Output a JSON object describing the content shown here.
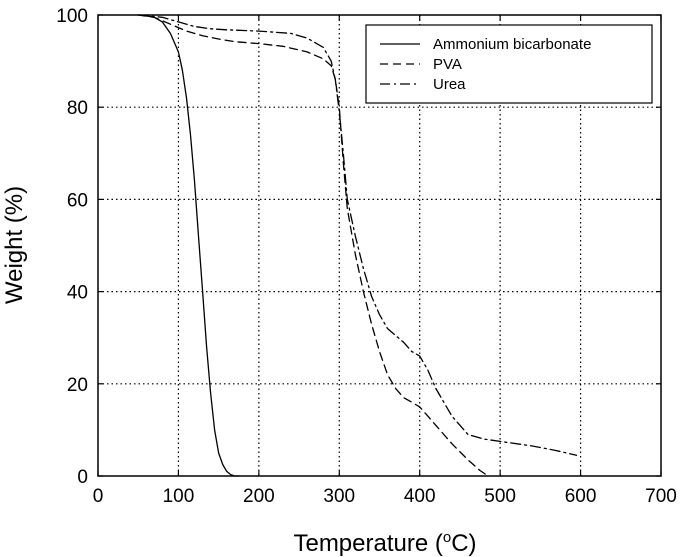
{
  "chart_data": {
    "type": "line",
    "xlabel": "Temperature (",
    "xlabel_sup": "o",
    "xlabel_unit": "C)",
    "ylabel": "Weight (%)",
    "xlim": [
      0,
      700
    ],
    "ylim": [
      0,
      100
    ],
    "x_ticks": [
      0,
      100,
      200,
      300,
      400,
      500,
      600,
      700
    ],
    "y_ticks": [
      0,
      20,
      40,
      60,
      80,
      100
    ],
    "grid": true,
    "legend_position": "top-right",
    "series": [
      {
        "name": "Ammonium bicarbonate",
        "style": "solid",
        "points": [
          [
            50,
            100
          ],
          [
            60,
            99.8
          ],
          [
            70,
            99.5
          ],
          [
            80,
            98.5
          ],
          [
            90,
            96
          ],
          [
            100,
            92
          ],
          [
            105,
            88
          ],
          [
            110,
            82
          ],
          [
            115,
            74
          ],
          [
            120,
            64
          ],
          [
            125,
            52
          ],
          [
            130,
            40
          ],
          [
            135,
            28
          ],
          [
            140,
            18
          ],
          [
            145,
            10
          ],
          [
            150,
            5
          ],
          [
            155,
            2.5
          ],
          [
            160,
            1
          ],
          [
            165,
            0.3
          ],
          [
            170,
            0
          ],
          [
            175,
            0
          ]
        ]
      },
      {
        "name": "PVA",
        "style": "dashed",
        "points": [
          [
            50,
            100
          ],
          [
            70,
            99.5
          ],
          [
            90,
            98
          ],
          [
            110,
            96.5
          ],
          [
            130,
            95.5
          ],
          [
            150,
            94.8
          ],
          [
            170,
            94.2
          ],
          [
            200,
            93.8
          ],
          [
            230,
            93.2
          ],
          [
            260,
            92
          ],
          [
            280,
            90.5
          ],
          [
            290,
            89
          ],
          [
            295,
            86
          ],
          [
            300,
            80
          ],
          [
            305,
            68
          ],
          [
            310,
            58
          ],
          [
            320,
            48
          ],
          [
            330,
            40
          ],
          [
            340,
            33
          ],
          [
            350,
            27
          ],
          [
            360,
            22
          ],
          [
            370,
            19
          ],
          [
            380,
            17
          ],
          [
            390,
            16
          ],
          [
            400,
            15
          ],
          [
            410,
            13
          ],
          [
            420,
            11
          ],
          [
            440,
            7
          ],
          [
            460,
            3.5
          ],
          [
            475,
            1.2
          ],
          [
            485,
            0
          ]
        ]
      },
      {
        "name": "Urea",
        "style": "dash-dot",
        "points": [
          [
            50,
            100
          ],
          [
            80,
            99.5
          ],
          [
            100,
            98.5
          ],
          [
            120,
            97.5
          ],
          [
            140,
            97
          ],
          [
            160,
            96.8
          ],
          [
            200,
            96.5
          ],
          [
            240,
            96
          ],
          [
            260,
            95
          ],
          [
            280,
            93
          ],
          [
            290,
            90
          ],
          [
            295,
            86
          ],
          [
            300,
            79
          ],
          [
            305,
            70
          ],
          [
            310,
            60
          ],
          [
            320,
            52
          ],
          [
            330,
            45
          ],
          [
            340,
            39
          ],
          [
            350,
            35
          ],
          [
            360,
            32
          ],
          [
            380,
            29
          ],
          [
            390,
            27
          ],
          [
            400,
            26
          ],
          [
            410,
            23
          ],
          [
            420,
            19
          ],
          [
            440,
            13
          ],
          [
            460,
            9
          ],
          [
            480,
            8
          ],
          [
            500,
            7.5
          ],
          [
            540,
            6.5
          ],
          [
            570,
            5.5
          ],
          [
            595,
            4.5
          ]
        ]
      }
    ]
  }
}
